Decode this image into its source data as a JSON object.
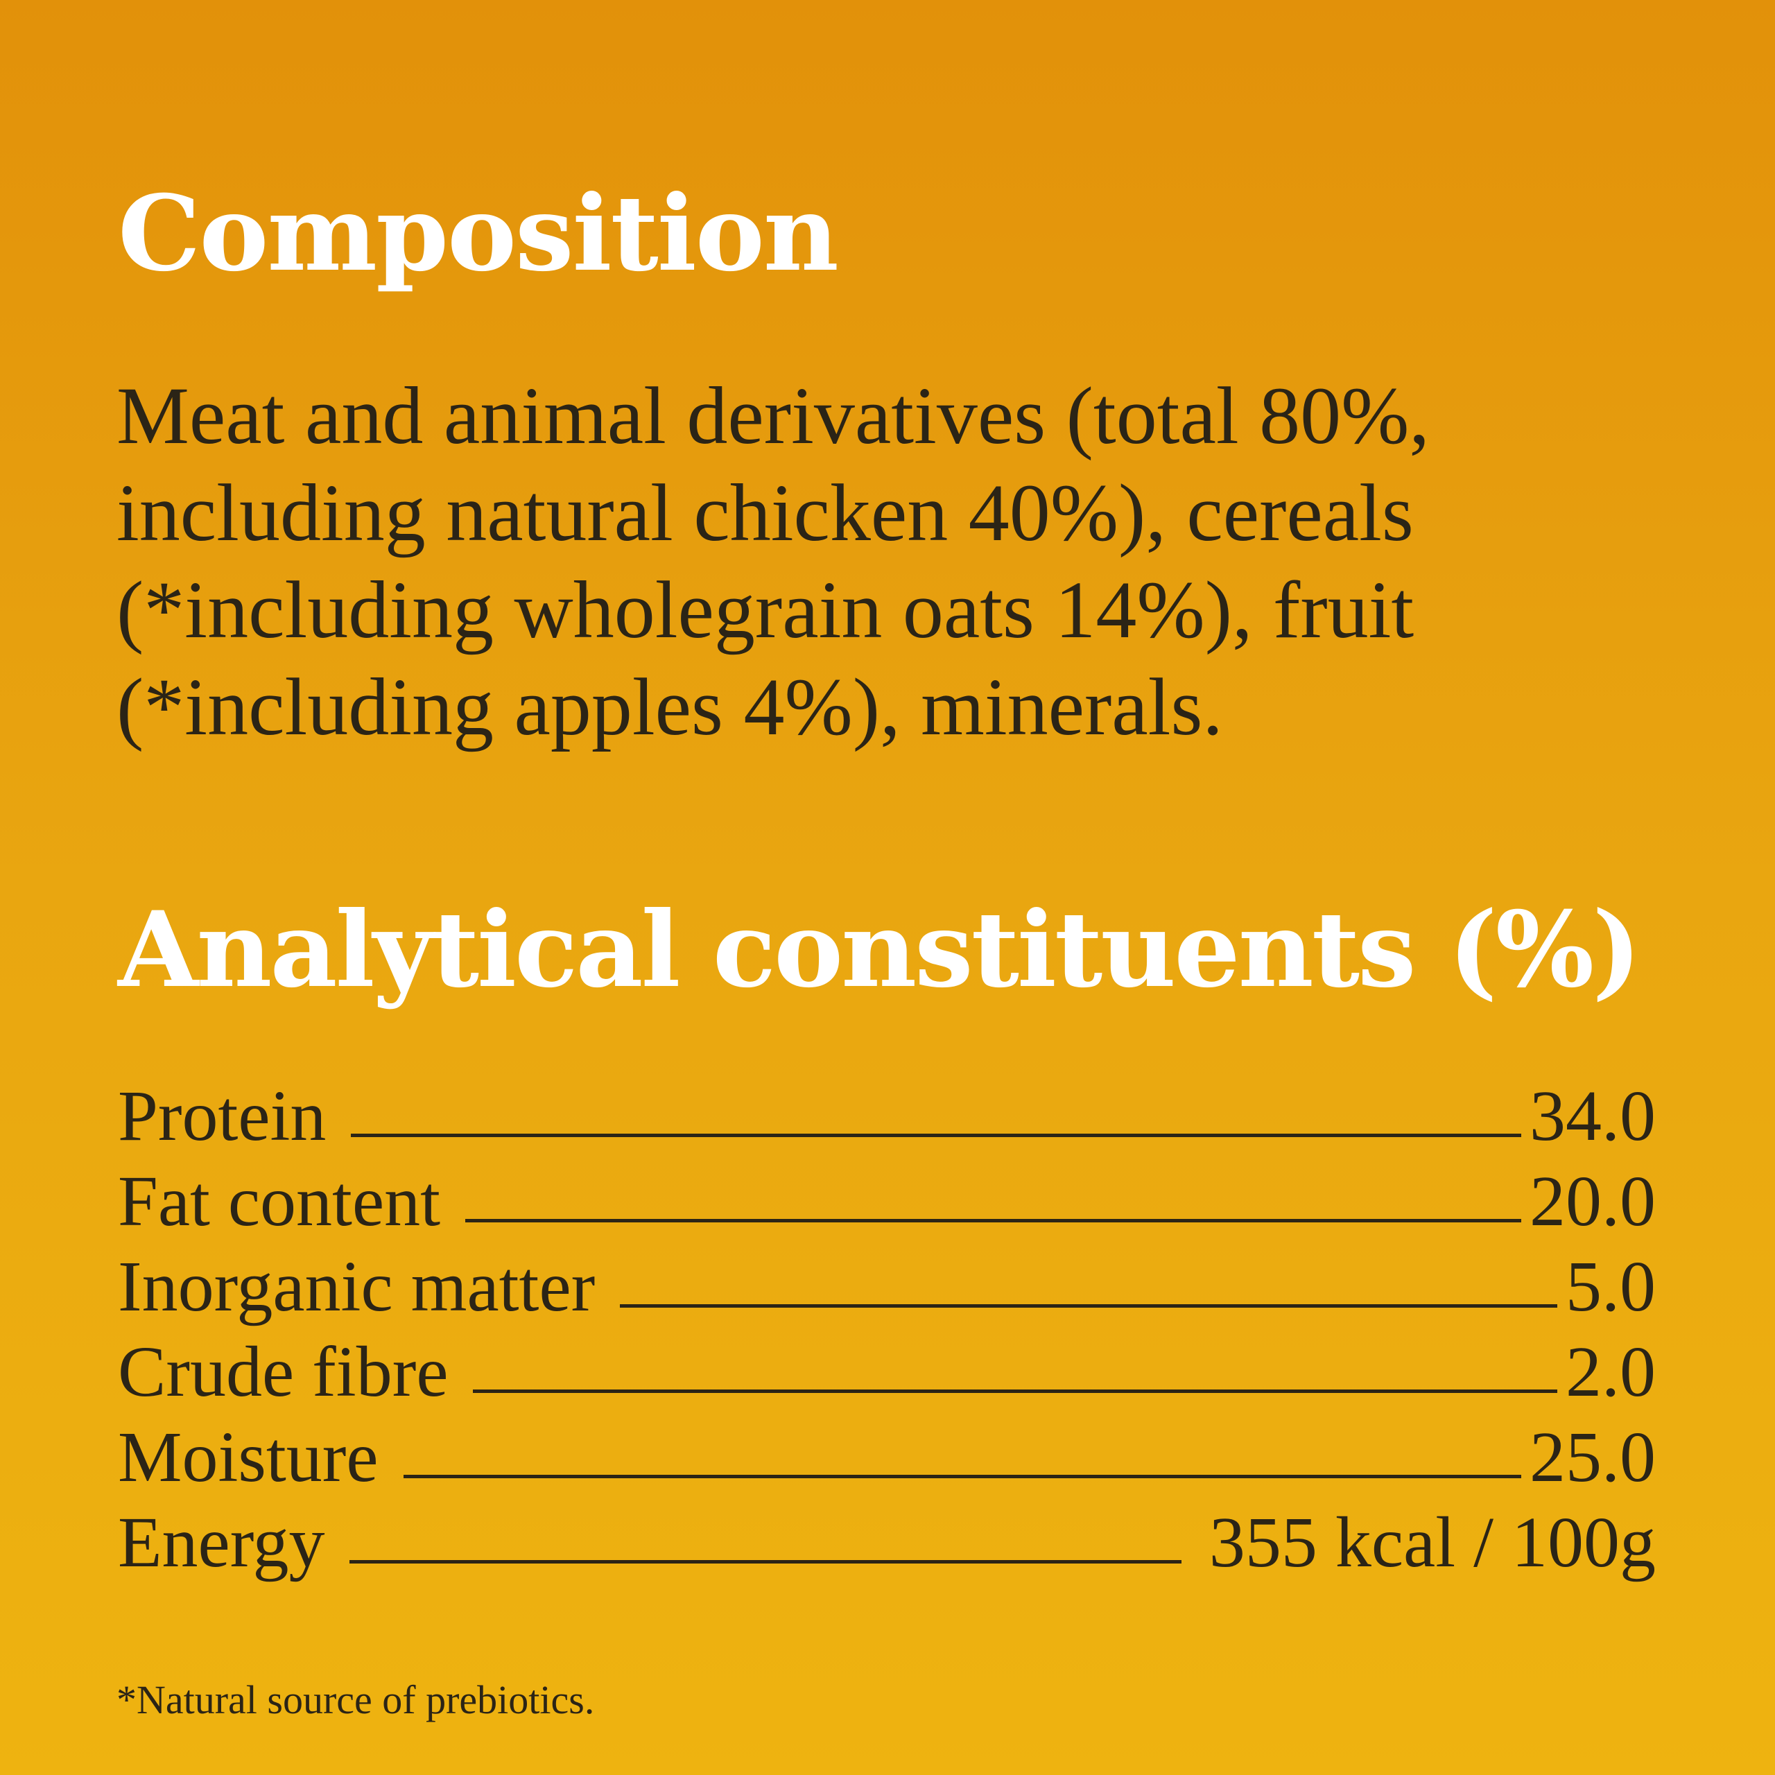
{
  "composition": {
    "heading": "Composition",
    "lines": [
      "Meat and animal derivatives (total 80%,",
      "including natural chicken 40%), cereals",
      "(*including wholegrain oats 14%), fruit",
      "(*including apples 4%), minerals."
    ]
  },
  "analytical": {
    "heading": "Analytical constituents (%)",
    "rows": [
      {
        "label": "Protein",
        "value": "34.0"
      },
      {
        "label": "Fat content",
        "value": "20.0"
      },
      {
        "label": "Inorganic matter",
        "value": "5.0"
      },
      {
        "label": "Crude fibre",
        "value": "2.0"
      },
      {
        "label": "Moisture",
        "value": "25.0"
      },
      {
        "label": "Energy",
        "value": "355 kcal / 100g"
      }
    ]
  },
  "footnote": "*Natural source of prebiotics.",
  "colors": {
    "background_top": "#E2910A",
    "background_bottom": "#EEB310",
    "heading": "#FFFFFF",
    "text": "#2B2416"
  }
}
